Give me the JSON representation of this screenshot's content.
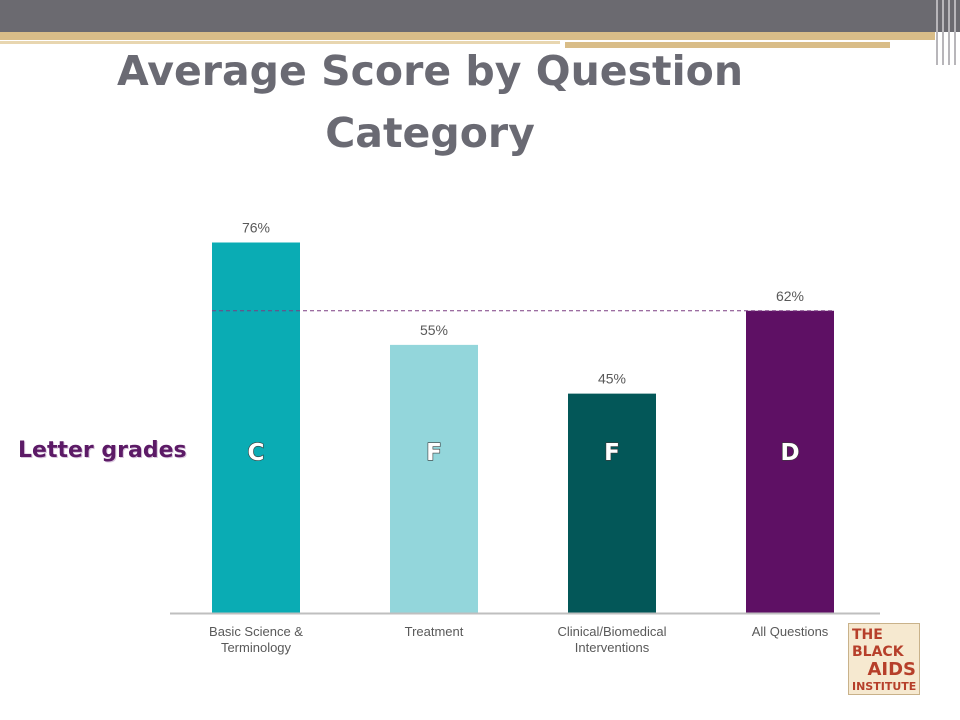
{
  "title": "Average Score by Question Category",
  "letter_grades_label": "Letter grades",
  "logo_lines": [
    "THE BLACK",
    "AIDS",
    "INSTITUTE"
  ],
  "colors": {
    "bar_basic": "#0aacb4",
    "bar_treatment": "#93d6db",
    "bar_clinical": "#035758",
    "bar_all": "#5e1064",
    "reference_line": "#7b3f82",
    "axis": "#bfbfbf",
    "title": "#6a6a73"
  },
  "chart_data": {
    "type": "bar",
    "categories": [
      "Basic Science & Terminology",
      "Treatment",
      "Clinical/Biomedical Interventions",
      "All Questions"
    ],
    "category_label_lines": [
      [
        "Basic Science &",
        "Terminology"
      ],
      [
        "Treatment"
      ],
      [
        "Clinical/Biomedical",
        "Interventions"
      ],
      [
        "All Questions"
      ]
    ],
    "values": [
      76,
      55,
      45,
      62
    ],
    "data_labels": [
      "76%",
      "55%",
      "45%",
      "62%"
    ],
    "letter_grades": [
      "C",
      "F",
      "F",
      "D"
    ],
    "reference_line_value": 62,
    "reference_line_style": "dashed",
    "title": "Average Score by Question Category",
    "xlabel": "",
    "ylabel": "",
    "ylim": [
      0,
      100
    ],
    "grid": false,
    "legend": "none"
  }
}
